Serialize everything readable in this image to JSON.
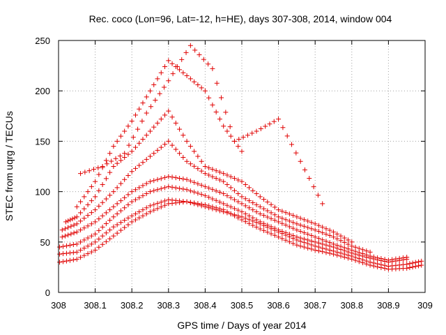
{
  "chart_data": {
    "type": "scatter",
    "title": "Rec. coco (Lon=96, Lat=-12, h=HE), days 307-308, 2014, window 004",
    "xlabel": "GPS time / Days of year 2014",
    "ylabel": "STEC from uqrg / TECUs",
    "xlim": [
      308,
      309
    ],
    "ylim": [
      0,
      250
    ],
    "xticks": [
      308,
      308.1,
      308.2,
      308.3,
      308.4,
      308.5,
      308.6,
      308.7,
      308.8,
      308.9,
      309
    ],
    "xtick_labels": [
      "308",
      "308.1",
      "308.2",
      "308.3",
      "308.4",
      "308.5",
      "308.6",
      "308.7",
      "308.8",
      "308.9",
      "309"
    ],
    "yticks": [
      0,
      50,
      100,
      150,
      200,
      250
    ],
    "ytick_labels": [
      "0",
      "50",
      "100",
      "150",
      "200",
      "250"
    ],
    "grid": true,
    "marker": "+",
    "marker_color": "#e00000",
    "series": [
      {
        "tracks": [
          {
            "x": [
              308.003,
              308.05,
              308.1,
              308.15,
              308.2,
              308.25,
              308.3,
              308.35,
              308.4,
              308.45,
              308.5,
              308.55,
              308.6,
              308.65,
              308.7,
              308.75,
              308.8,
              308.85,
              308.9,
              308.95,
              308.99
            ],
            "y": [
              30,
              33,
              42,
              56,
              70,
              80,
              88,
              90,
              87,
              82,
              72,
              63,
              55,
              47,
              42,
              38,
              33,
              27,
              23,
              24,
              27
            ]
          },
          {
            "x": [
              308.003,
              308.05,
              308.1,
              308.15,
              308.2,
              308.25,
              308.3,
              308.35,
              308.4,
              308.45,
              308.5,
              308.55,
              308.6,
              308.65,
              308.7,
              308.75,
              308.8,
              308.85,
              308.9,
              308.95,
              308.99
            ],
            "y": [
              38,
              40,
              50,
              65,
              76,
              86,
              92,
              90,
              85,
              80,
              75,
              68,
              60,
              52,
              46,
              41,
              36,
              30,
              26,
              28,
              31
            ]
          },
          {
            "x": [
              308.003,
              308.05,
              308.1,
              308.15,
              308.2,
              308.25,
              308.3,
              308.35,
              308.4,
              308.45,
              308.5,
              308.55,
              308.6,
              308.65,
              308.7,
              308.75,
              308.8,
              308.85,
              308.9,
              308.95
            ],
            "y": [
              45,
              48,
              58,
              75,
              90,
              100,
              105,
              102,
              96,
              88,
              80,
              70,
              62,
              55,
              50,
              45,
              39,
              34,
              30,
              33
            ]
          },
          {
            "x": [
              308.01,
              308.05,
              308.1,
              308.15,
              308.2,
              308.25,
              308.3,
              308.35,
              308.4,
              308.45,
              308.5,
              308.55,
              308.6,
              308.65,
              308.7,
              308.75,
              308.8,
              308.85,
              308.9,
              308.95
            ],
            "y": [
              55,
              60,
              70,
              85,
              100,
              110,
              115,
              112,
              105,
              98,
              88,
              78,
              70,
              62,
              55,
              48,
              42,
              36,
              32,
              35
            ]
          },
          {
            "x": [
              308.01,
              308.05,
              308.1,
              308.15,
              308.2,
              308.25,
              308.3,
              308.35,
              308.4,
              308.45,
              308.5,
              308.55,
              308.6,
              308.65,
              308.7,
              308.75,
              308.8,
              308.85
            ],
            "y": [
              62,
              68,
              82,
              100,
              120,
              135,
              150,
              130,
              118,
              110,
              95,
              85,
              75,
              68,
              62,
              55,
              46,
              40
            ]
          },
          {
            "x": [
              308.02,
              308.05,
              308.1,
              308.15,
              308.2,
              308.25,
              308.3,
              308.35,
              308.4,
              308.45,
              308.5,
              308.55,
              308.6,
              308.65,
              308.7,
              308.75,
              308.8
            ],
            "y": [
              70,
              75,
              95,
              125,
              140,
              160,
              180,
              150,
              125,
              118,
              110,
              95,
              82,
              75,
              68,
              60,
              50
            ]
          },
          {
            "x": [
              308.05,
              308.1,
              308.15,
              308.2,
              308.25,
              308.3,
              308.35,
              308.4,
              308.45,
              308.5
            ],
            "y": [
              85,
              110,
              145,
              170,
              200,
              230,
              215,
              200,
              165,
              140
            ]
          },
          {
            "x": [
              308.06,
              308.12,
              308.18,
              308.24,
              308.3,
              308.36,
              308.42,
              308.48,
              308.54,
              308.6,
              308.66,
              308.72
            ],
            "y": [
              118,
              125,
              138,
              178,
              210,
              245,
              222,
              150,
              160,
              172,
              130,
              88
            ]
          }
        ]
      }
    ]
  }
}
